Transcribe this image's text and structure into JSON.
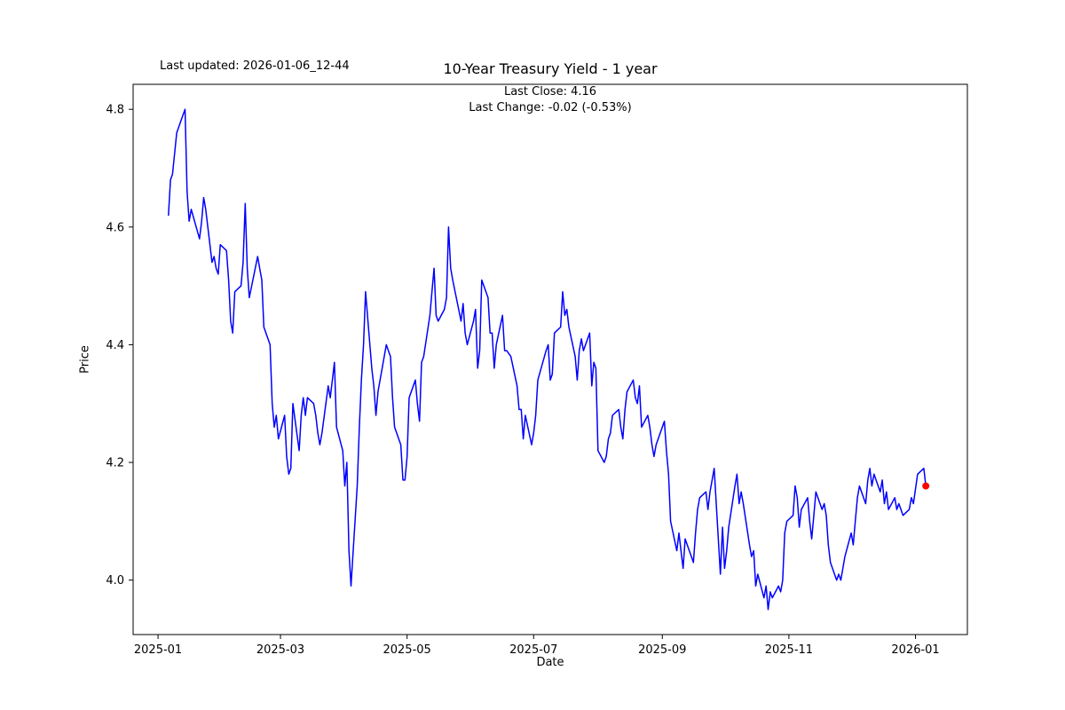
{
  "header": {
    "last_updated": "Last updated: 2026-01-06_12-44",
    "title": "10-Year Treasury Yield - 1 year",
    "last_close": "Last Close: 4.16",
    "last_change": "Last Change: -0.02 (-0.53%)"
  },
  "chart_data": {
    "type": "line",
    "title": "10-Year Treasury Yield - 1 year",
    "xlabel": "Date",
    "ylabel": "Price",
    "grid": false,
    "legend": null,
    "line_color": "#0000ff",
    "marker_color": "#ff0000",
    "last_point": {
      "date": "2026-01-06",
      "value": 4.16
    },
    "ylim": [
      3.9075,
      4.8425
    ],
    "xlim": [
      "2024-12-20",
      "2026-01-26"
    ],
    "y_ticks": [
      {
        "value": 4.0,
        "label": "4.0"
      },
      {
        "value": 4.2,
        "label": "4.2"
      },
      {
        "value": 4.4,
        "label": "4.4"
      },
      {
        "value": 4.6,
        "label": "4.6"
      },
      {
        "value": 4.8,
        "label": "4.8"
      }
    ],
    "x_ticks": [
      {
        "date": "2025-01-01",
        "label": "2025-01"
      },
      {
        "date": "2025-03-01",
        "label": "2025-03"
      },
      {
        "date": "2025-05-01",
        "label": "2025-05"
      },
      {
        "date": "2025-07-01",
        "label": "2025-07"
      },
      {
        "date": "2025-09-01",
        "label": "2025-09"
      },
      {
        "date": "2025-11-01",
        "label": "2025-11"
      },
      {
        "date": "2026-01-01",
        "label": "2026-01"
      }
    ],
    "series": [
      {
        "name": "10-Year Treasury Yield",
        "points": [
          [
            "2025-01-06",
            4.62
          ],
          [
            "2025-01-07",
            4.68
          ],
          [
            "2025-01-08",
            4.69
          ],
          [
            "2025-01-10",
            4.76
          ],
          [
            "2025-01-13",
            4.79
          ],
          [
            "2025-01-14",
            4.8
          ],
          [
            "2025-01-15",
            4.66
          ],
          [
            "2025-01-16",
            4.61
          ],
          [
            "2025-01-17",
            4.63
          ],
          [
            "2025-01-21",
            4.58
          ],
          [
            "2025-01-22",
            4.61
          ],
          [
            "2025-01-23",
            4.65
          ],
          [
            "2025-01-24",
            4.63
          ],
          [
            "2025-01-27",
            4.54
          ],
          [
            "2025-01-28",
            4.55
          ],
          [
            "2025-01-29",
            4.53
          ],
          [
            "2025-01-30",
            4.52
          ],
          [
            "2025-01-31",
            4.57
          ],
          [
            "2025-02-03",
            4.56
          ],
          [
            "2025-02-04",
            4.51
          ],
          [
            "2025-02-05",
            4.44
          ],
          [
            "2025-02-06",
            4.42
          ],
          [
            "2025-02-07",
            4.49
          ],
          [
            "2025-02-10",
            4.5
          ],
          [
            "2025-02-11",
            4.54
          ],
          [
            "2025-02-12",
            4.64
          ],
          [
            "2025-02-13",
            4.53
          ],
          [
            "2025-02-14",
            4.48
          ],
          [
            "2025-02-18",
            4.55
          ],
          [
            "2025-02-19",
            4.53
          ],
          [
            "2025-02-20",
            4.51
          ],
          [
            "2025-02-21",
            4.43
          ],
          [
            "2025-02-24",
            4.4
          ],
          [
            "2025-02-25",
            4.3
          ],
          [
            "2025-02-26",
            4.26
          ],
          [
            "2025-02-27",
            4.28
          ],
          [
            "2025-02-28",
            4.24
          ],
          [
            "2025-03-03",
            4.28
          ],
          [
            "2025-03-04",
            4.21
          ],
          [
            "2025-03-05",
            4.18
          ],
          [
            "2025-03-06",
            4.19
          ],
          [
            "2025-03-07",
            4.3
          ],
          [
            "2025-03-10",
            4.22
          ],
          [
            "2025-03-11",
            4.28
          ],
          [
            "2025-03-12",
            4.31
          ],
          [
            "2025-03-13",
            4.28
          ],
          [
            "2025-03-14",
            4.31
          ],
          [
            "2025-03-17",
            4.3
          ],
          [
            "2025-03-18",
            4.28
          ],
          [
            "2025-03-19",
            4.25
          ],
          [
            "2025-03-20",
            4.23
          ],
          [
            "2025-03-21",
            4.25
          ],
          [
            "2025-03-24",
            4.33
          ],
          [
            "2025-03-25",
            4.31
          ],
          [
            "2025-03-26",
            4.34
          ],
          [
            "2025-03-27",
            4.37
          ],
          [
            "2025-03-28",
            4.26
          ],
          [
            "2025-03-31",
            4.22
          ],
          [
            "2025-04-01",
            4.16
          ],
          [
            "2025-04-02",
            4.2
          ],
          [
            "2025-04-03",
            4.05
          ],
          [
            "2025-04-04",
            3.99
          ],
          [
            "2025-04-07",
            4.16
          ],
          [
            "2025-04-08",
            4.26
          ],
          [
            "2025-04-09",
            4.34
          ],
          [
            "2025-04-10",
            4.4
          ],
          [
            "2025-04-11",
            4.49
          ],
          [
            "2025-04-14",
            4.36
          ],
          [
            "2025-04-15",
            4.33
          ],
          [
            "2025-04-16",
            4.28
          ],
          [
            "2025-04-17",
            4.32
          ],
          [
            "2025-04-21",
            4.4
          ],
          [
            "2025-04-22",
            4.39
          ],
          [
            "2025-04-23",
            4.38
          ],
          [
            "2025-04-24",
            4.31
          ],
          [
            "2025-04-25",
            4.26
          ],
          [
            "2025-04-28",
            4.23
          ],
          [
            "2025-04-29",
            4.17
          ],
          [
            "2025-04-30",
            4.17
          ],
          [
            "2025-05-01",
            4.21
          ],
          [
            "2025-05-02",
            4.31
          ],
          [
            "2025-05-05",
            4.34
          ],
          [
            "2025-05-06",
            4.3
          ],
          [
            "2025-05-07",
            4.27
          ],
          [
            "2025-05-08",
            4.37
          ],
          [
            "2025-05-09",
            4.38
          ],
          [
            "2025-05-12",
            4.45
          ],
          [
            "2025-05-13",
            4.49
          ],
          [
            "2025-05-14",
            4.53
          ],
          [
            "2025-05-15",
            4.45
          ],
          [
            "2025-05-16",
            4.44
          ],
          [
            "2025-05-19",
            4.46
          ],
          [
            "2025-05-20",
            4.48
          ],
          [
            "2025-05-21",
            4.6
          ],
          [
            "2025-05-22",
            4.53
          ],
          [
            "2025-05-23",
            4.51
          ],
          [
            "2025-05-27",
            4.44
          ],
          [
            "2025-05-28",
            4.47
          ],
          [
            "2025-05-29",
            4.42
          ],
          [
            "2025-05-30",
            4.4
          ],
          [
            "2025-06-02",
            4.44
          ],
          [
            "2025-06-03",
            4.46
          ],
          [
            "2025-06-04",
            4.36
          ],
          [
            "2025-06-05",
            4.39
          ],
          [
            "2025-06-06",
            4.51
          ],
          [
            "2025-06-09",
            4.48
          ],
          [
            "2025-06-10",
            4.42
          ],
          [
            "2025-06-11",
            4.42
          ],
          [
            "2025-06-12",
            4.36
          ],
          [
            "2025-06-13",
            4.4
          ],
          [
            "2025-06-16",
            4.45
          ],
          [
            "2025-06-17",
            4.39
          ],
          [
            "2025-06-18",
            4.39
          ],
          [
            "2025-06-20",
            4.38
          ],
          [
            "2025-06-23",
            4.33
          ],
          [
            "2025-06-24",
            4.29
          ],
          [
            "2025-06-25",
            4.29
          ],
          [
            "2025-06-26",
            4.24
          ],
          [
            "2025-06-27",
            4.28
          ],
          [
            "2025-06-30",
            4.23
          ],
          [
            "2025-07-01",
            4.25
          ],
          [
            "2025-07-02",
            4.28
          ],
          [
            "2025-07-03",
            4.34
          ],
          [
            "2025-07-07",
            4.39
          ],
          [
            "2025-07-08",
            4.4
          ],
          [
            "2025-07-09",
            4.34
          ],
          [
            "2025-07-10",
            4.35
          ],
          [
            "2025-07-11",
            4.42
          ],
          [
            "2025-07-14",
            4.43
          ],
          [
            "2025-07-15",
            4.49
          ],
          [
            "2025-07-16",
            4.45
          ],
          [
            "2025-07-17",
            4.46
          ],
          [
            "2025-07-18",
            4.43
          ],
          [
            "2025-07-21",
            4.38
          ],
          [
            "2025-07-22",
            4.34
          ],
          [
            "2025-07-23",
            4.39
          ],
          [
            "2025-07-24",
            4.41
          ],
          [
            "2025-07-25",
            4.39
          ],
          [
            "2025-07-28",
            4.42
          ],
          [
            "2025-07-29",
            4.33
          ],
          [
            "2025-07-30",
            4.37
          ],
          [
            "2025-07-31",
            4.36
          ],
          [
            "2025-08-01",
            4.22
          ],
          [
            "2025-08-04",
            4.2
          ],
          [
            "2025-08-05",
            4.21
          ],
          [
            "2025-08-06",
            4.24
          ],
          [
            "2025-08-07",
            4.25
          ],
          [
            "2025-08-08",
            4.28
          ],
          [
            "2025-08-11",
            4.29
          ],
          [
            "2025-08-12",
            4.26
          ],
          [
            "2025-08-13",
            4.24
          ],
          [
            "2025-08-14",
            4.29
          ],
          [
            "2025-08-15",
            4.32
          ],
          [
            "2025-08-18",
            4.34
          ],
          [
            "2025-08-19",
            4.31
          ],
          [
            "2025-08-20",
            4.3
          ],
          [
            "2025-08-21",
            4.33
          ],
          [
            "2025-08-22",
            4.26
          ],
          [
            "2025-08-25",
            4.28
          ],
          [
            "2025-08-26",
            4.26
          ],
          [
            "2025-08-27",
            4.23
          ],
          [
            "2025-08-28",
            4.21
          ],
          [
            "2025-08-29",
            4.23
          ],
          [
            "2025-09-02",
            4.27
          ],
          [
            "2025-09-03",
            4.22
          ],
          [
            "2025-09-04",
            4.18
          ],
          [
            "2025-09-05",
            4.1
          ],
          [
            "2025-09-08",
            4.05
          ],
          [
            "2025-09-09",
            4.08
          ],
          [
            "2025-09-10",
            4.05
          ],
          [
            "2025-09-11",
            4.02
          ],
          [
            "2025-09-12",
            4.07
          ],
          [
            "2025-09-15",
            4.04
          ],
          [
            "2025-09-16",
            4.03
          ],
          [
            "2025-09-17",
            4.08
          ],
          [
            "2025-09-18",
            4.12
          ],
          [
            "2025-09-19",
            4.14
          ],
          [
            "2025-09-22",
            4.15
          ],
          [
            "2025-09-23",
            4.12
          ],
          [
            "2025-09-24",
            4.15
          ],
          [
            "2025-09-25",
            4.17
          ],
          [
            "2025-09-26",
            4.19
          ],
          [
            "2025-09-29",
            4.01
          ],
          [
            "2025-09-30",
            4.09
          ],
          [
            "2025-10-01",
            4.02
          ],
          [
            "2025-10-02",
            4.05
          ],
          [
            "2025-10-03",
            4.09
          ],
          [
            "2025-10-06",
            4.16
          ],
          [
            "2025-10-07",
            4.18
          ],
          [
            "2025-10-08",
            4.13
          ],
          [
            "2025-10-09",
            4.15
          ],
          [
            "2025-10-10",
            4.13
          ],
          [
            "2025-10-13",
            4.06
          ],
          [
            "2025-10-14",
            4.04
          ],
          [
            "2025-10-15",
            4.05
          ],
          [
            "2025-10-16",
            3.99
          ],
          [
            "2025-10-17",
            4.01
          ],
          [
            "2025-10-20",
            3.97
          ],
          [
            "2025-10-21",
            3.99
          ],
          [
            "2025-10-22",
            3.95
          ],
          [
            "2025-10-23",
            3.98
          ],
          [
            "2025-10-24",
            3.97
          ],
          [
            "2025-10-27",
            3.99
          ],
          [
            "2025-10-28",
            3.98
          ],
          [
            "2025-10-29",
            4.0
          ],
          [
            "2025-10-30",
            4.08
          ],
          [
            "2025-10-31",
            4.1
          ],
          [
            "2025-11-03",
            4.11
          ],
          [
            "2025-11-04",
            4.16
          ],
          [
            "2025-11-05",
            4.14
          ],
          [
            "2025-11-06",
            4.09
          ],
          [
            "2025-11-07",
            4.12
          ],
          [
            "2025-11-10",
            4.14
          ],
          [
            "2025-11-11",
            4.1
          ],
          [
            "2025-11-12",
            4.07
          ],
          [
            "2025-11-13",
            4.11
          ],
          [
            "2025-11-14",
            4.15
          ],
          [
            "2025-11-17",
            4.12
          ],
          [
            "2025-11-18",
            4.13
          ],
          [
            "2025-11-19",
            4.11
          ],
          [
            "2025-11-20",
            4.06
          ],
          [
            "2025-11-21",
            4.03
          ],
          [
            "2025-11-24",
            4.0
          ],
          [
            "2025-11-25",
            4.01
          ],
          [
            "2025-11-26",
            4.0
          ],
          [
            "2025-11-28",
            4.04
          ],
          [
            "2025-12-01",
            4.08
          ],
          [
            "2025-12-02",
            4.06
          ],
          [
            "2025-12-03",
            4.1
          ],
          [
            "2025-12-04",
            4.14
          ],
          [
            "2025-12-05",
            4.16
          ],
          [
            "2025-12-08",
            4.13
          ],
          [
            "2025-12-09",
            4.17
          ],
          [
            "2025-12-10",
            4.19
          ],
          [
            "2025-12-11",
            4.16
          ],
          [
            "2025-12-12",
            4.18
          ],
          [
            "2025-12-15",
            4.15
          ],
          [
            "2025-12-16",
            4.17
          ],
          [
            "2025-12-17",
            4.13
          ],
          [
            "2025-12-18",
            4.15
          ],
          [
            "2025-12-19",
            4.12
          ],
          [
            "2025-12-22",
            4.14
          ],
          [
            "2025-12-23",
            4.12
          ],
          [
            "2025-12-24",
            4.13
          ],
          [
            "2025-12-26",
            4.11
          ],
          [
            "2025-12-29",
            4.12
          ],
          [
            "2025-12-30",
            4.14
          ],
          [
            "2025-12-31",
            4.13
          ],
          [
            "2026-01-02",
            4.18
          ],
          [
            "2026-01-05",
            4.19
          ],
          [
            "2026-01-06",
            4.16
          ]
        ]
      }
    ]
  }
}
